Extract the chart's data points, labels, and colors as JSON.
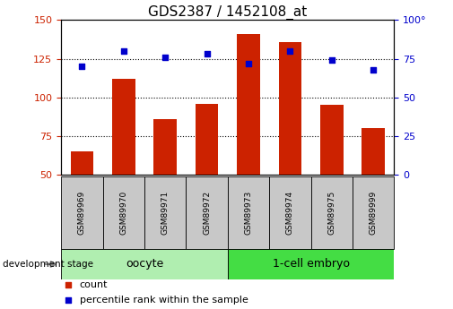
{
  "title": "GDS2387 / 1452108_at",
  "categories": [
    "GSM89969",
    "GSM89970",
    "GSM89971",
    "GSM89972",
    "GSM89973",
    "GSM89974",
    "GSM89975",
    "GSM89999"
  ],
  "counts": [
    65,
    112,
    86,
    96,
    141,
    136,
    95,
    80
  ],
  "percentiles": [
    70,
    80,
    76,
    78,
    72,
    80,
    74,
    68
  ],
  "bar_color": "#cc2200",
  "scatter_color": "#0000cc",
  "left_ylim": [
    50,
    150
  ],
  "right_ylim": [
    0,
    100
  ],
  "left_yticks": [
    50,
    75,
    100,
    125,
    150
  ],
  "right_yticks": [
    0,
    25,
    50,
    75,
    100
  ],
  "right_yticklabels": [
    "0",
    "25",
    "50",
    "75",
    "100°"
  ],
  "group_labels": [
    "oocyte",
    "1-cell embryo"
  ],
  "group_colors_left": "#b0eeb0",
  "group_colors_right": "#44dd44",
  "stage_label": "development stage",
  "legend_count": "count",
  "legend_percentile": "percentile rank within the sample",
  "background_color": "#ffffff",
  "title_fontsize": 11,
  "axis_fontsize": 8,
  "bar_width": 0.55
}
